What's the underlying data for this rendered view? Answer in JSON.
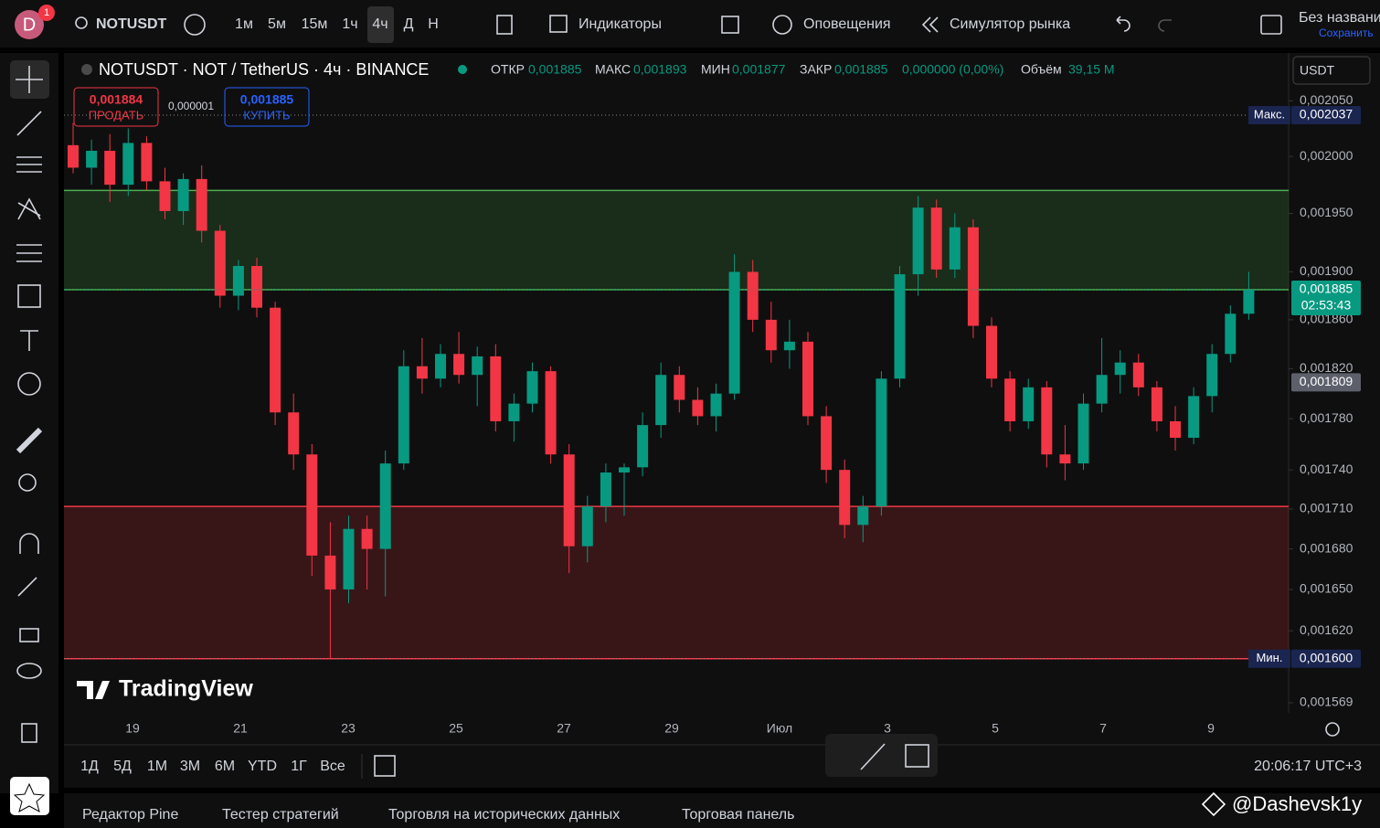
{
  "header": {
    "avatar": "D",
    "badge": "1",
    "symbol": "NOTUSDT",
    "timeframes": [
      "1м",
      "5м",
      "15м",
      "1ч",
      "4ч",
      "Д",
      "Н"
    ],
    "indicators": "Индикаторы",
    "alerts": "Оповещения",
    "replay": "Симулятор рынка",
    "layout_name": "Без названи",
    "save": "Сохранить"
  },
  "legend": {
    "title": "NOTUSDT · NOT / TetherUS · 4ч · BINANCE",
    "open_label": "ОТКР",
    "open": "0,001885",
    "high_label": "МАКС",
    "high": "0,001893",
    "low_label": "МИН",
    "low": "0,001877",
    "close_label": "ЗАКР",
    "close": "0,001885",
    "change": "0,000000 (0,00%)",
    "volume_label": "Объём",
    "volume": "39,15 M"
  },
  "trade": {
    "sell_price": "0,001884",
    "sell": "ПРОДАТЬ",
    "spread": "0,000001",
    "buy_price": "0,001885",
    "buy": "КУПИТЬ"
  },
  "currency": "USDT",
  "chart_data": {
    "type": "candlestick",
    "log": true,
    "up_color": "#089981",
    "down_color": "#f23645",
    "ylim": [
      0.001562,
      0.002094
    ],
    "yticks": [
      {
        "value": 0.00205,
        "label": "0,002050"
      },
      {
        "value": 0.002,
        "label": "0,002000"
      },
      {
        "value": 0.00195,
        "label": "0,001950"
      },
      {
        "value": 0.0019,
        "label": "0,001900"
      },
      {
        "value": 0.00186,
        "label": "0,001860"
      },
      {
        "value": 0.00182,
        "label": "0,001820"
      },
      {
        "value": 0.00178,
        "label": "0,001780"
      },
      {
        "value": 0.00174,
        "label": "0,001740"
      },
      {
        "value": 0.00171,
        "label": "0,001710"
      },
      {
        "value": 0.00168,
        "label": "0,001680"
      },
      {
        "value": 0.00165,
        "label": "0,001650"
      },
      {
        "value": 0.00162,
        "label": "0,001620"
      },
      {
        "value": 0.001569,
        "label": "0,001569"
      }
    ],
    "xticks": [
      "19",
      "21",
      "23",
      "25",
      "27",
      "29",
      "Июл",
      "3",
      "5",
      "7",
      "9"
    ],
    "zones": [
      {
        "from": 0.001885,
        "to": 0.00197,
        "color": "#4caf50"
      },
      {
        "from": 0.0016,
        "to": 0.001712,
        "color": "#f23645"
      }
    ],
    "price_labels": [
      {
        "name": "Макс.",
        "value": 0.002037,
        "label": "0,002037",
        "color": "#1a2550"
      },
      {
        "value": 0.001885,
        "label": "0,001885",
        "countdown": "02:53:43",
        "color": "#089981"
      },
      {
        "value": 0.001809,
        "label": "0,001809",
        "color": "#5d606b"
      },
      {
        "name": "Мин.",
        "value": 0.0016,
        "label": "0,001600",
        "color": "#1a2550"
      }
    ],
    "candles": [
      [
        0.00201,
        0.00203,
        0.001985,
        0.00199
      ],
      [
        0.00199,
        0.002015,
        0.001975,
        0.002005
      ],
      [
        0.002005,
        0.00202,
        0.00196,
        0.001975
      ],
      [
        0.001975,
        0.002025,
        0.001965,
        0.002012
      ],
      [
        0.002012,
        0.002018,
        0.00197,
        0.001978
      ],
      [
        0.001978,
        0.00199,
        0.001945,
        0.001952
      ],
      [
        0.001952,
        0.001985,
        0.00194,
        0.00198
      ],
      [
        0.00198,
        0.001992,
        0.001925,
        0.001935
      ],
      [
        0.001935,
        0.00194,
        0.00187,
        0.00188
      ],
      [
        0.00188,
        0.00191,
        0.001868,
        0.001905
      ],
      [
        0.001905,
        0.001912,
        0.001862,
        0.00187
      ],
      [
        0.00187,
        0.001875,
        0.001775,
        0.001785
      ],
      [
        0.001785,
        0.0018,
        0.00174,
        0.001752
      ],
      [
        0.001752,
        0.00176,
        0.00166,
        0.001675
      ],
      [
        0.001675,
        0.0017,
        0.0016,
        0.00165
      ],
      [
        0.00165,
        0.001705,
        0.00164,
        0.001695
      ],
      [
        0.001695,
        0.001705,
        0.00165,
        0.00168
      ],
      [
        0.00168,
        0.001755,
        0.001645,
        0.001745
      ],
      [
        0.001745,
        0.001835,
        0.00174,
        0.001822
      ],
      [
        0.001822,
        0.001845,
        0.0018,
        0.001812
      ],
      [
        0.001812,
        0.00184,
        0.001805,
        0.001832
      ],
      [
        0.001832,
        0.00185,
        0.001808,
        0.001815
      ],
      [
        0.001815,
        0.001838,
        0.00179,
        0.00183
      ],
      [
        0.00183,
        0.00184,
        0.00177,
        0.001778
      ],
      [
        0.001778,
        0.0018,
        0.001762,
        0.001792
      ],
      [
        0.001792,
        0.001825,
        0.001785,
        0.001818
      ],
      [
        0.001818,
        0.001822,
        0.001745,
        0.001752
      ],
      [
        0.001752,
        0.00176,
        0.001662,
        0.001682
      ],
      [
        0.001682,
        0.00172,
        0.00167,
        0.001712
      ],
      [
        0.001712,
        0.001745,
        0.0017,
        0.001738
      ],
      [
        0.001738,
        0.001745,
        0.001705,
        0.001742
      ],
      [
        0.001742,
        0.001785,
        0.001735,
        0.001775
      ],
      [
        0.001775,
        0.001825,
        0.001765,
        0.001815
      ],
      [
        0.001815,
        0.001822,
        0.001785,
        0.001795
      ],
      [
        0.001795,
        0.001805,
        0.001775,
        0.001782
      ],
      [
        0.001782,
        0.001808,
        0.00177,
        0.0018
      ],
      [
        0.0018,
        0.001915,
        0.001795,
        0.0019
      ],
      [
        0.0019,
        0.00191,
        0.00185,
        0.00186
      ],
      [
        0.00186,
        0.001875,
        0.001825,
        0.001835
      ],
      [
        0.001835,
        0.00186,
        0.00182,
        0.001842
      ],
      [
        0.001842,
        0.00185,
        0.001775,
        0.001782
      ],
      [
        0.001782,
        0.00179,
        0.00173,
        0.00174
      ],
      [
        0.00174,
        0.001748,
        0.001688,
        0.001698
      ],
      [
        0.001698,
        0.00172,
        0.001685,
        0.001712
      ],
      [
        0.001712,
        0.001818,
        0.001705,
        0.001812
      ],
      [
        0.001812,
        0.001905,
        0.001805,
        0.001898
      ],
      [
        0.001898,
        0.001965,
        0.00188,
        0.001955
      ],
      [
        0.001955,
        0.001962,
        0.001895,
        0.001902
      ],
      [
        0.001902,
        0.00195,
        0.001895,
        0.001938
      ],
      [
        0.001938,
        0.001945,
        0.001845,
        0.001855
      ],
      [
        0.001855,
        0.001862,
        0.001805,
        0.001812
      ],
      [
        0.001812,
        0.001818,
        0.00177,
        0.001778
      ],
      [
        0.001778,
        0.001812,
        0.001772,
        0.001805
      ],
      [
        0.001805,
        0.00181,
        0.001742,
        0.001752
      ],
      [
        0.001752,
        0.001775,
        0.001732,
        0.001745
      ],
      [
        0.001745,
        0.0018,
        0.00174,
        0.001792
      ],
      [
        0.001792,
        0.001845,
        0.001785,
        0.001815
      ],
      [
        0.001815,
        0.001835,
        0.0018,
        0.001825
      ],
      [
        0.001825,
        0.001832,
        0.001798,
        0.001805
      ],
      [
        0.001805,
        0.00181,
        0.00177,
        0.001778
      ],
      [
        0.001778,
        0.00179,
        0.001755,
        0.001765
      ],
      [
        0.001765,
        0.001805,
        0.00176,
        0.001798
      ],
      [
        0.001798,
        0.00184,
        0.001785,
        0.001832
      ],
      [
        0.001832,
        0.001872,
        0.001825,
        0.001865
      ],
      [
        0.001865,
        0.0019,
        0.00186,
        0.001885
      ]
    ]
  },
  "ranges": [
    "1Д",
    "5Д",
    "1М",
    "3М",
    "6М",
    "YTD",
    "1Г",
    "Все"
  ],
  "clock": "20:06:17 UTC+3",
  "tabs": [
    "Редактор Pine",
    "Тестер стратегий",
    "Торговля на исторических данных",
    "Торговая панель"
  ],
  "watermark": "TradingView",
  "credit": "@Dashevsk1y"
}
